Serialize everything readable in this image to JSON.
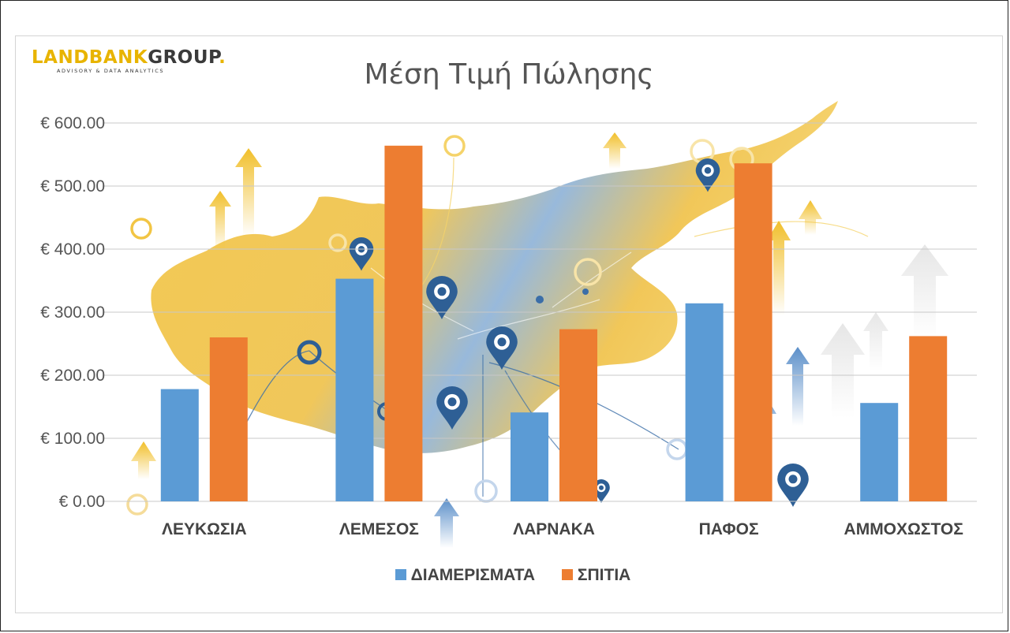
{
  "logo": {
    "brand_part1": "LANDBANK",
    "brand_part2": "GROUP",
    "brand_dot": ".",
    "tagline": "ADVISORY & DATA ANALYTICS"
  },
  "colors": {
    "apartments": "#5b9bd5",
    "houses": "#ed7d31",
    "logo_yellow": "#e8b400",
    "map_yellow": "#f0c24a"
  },
  "chart_data": {
    "type": "bar",
    "title": "Μέση Τιμή Πώλησης",
    "categories": [
      "ΛΕΥΚΩΣΙΑ",
      "ΛΕΜΕΣΟΣ",
      "ΛΑΡΝΑΚΑ",
      "ΠΑΦΟΣ",
      "ΑΜΜΟΧΩΣΤΟΣ"
    ],
    "series": [
      {
        "name": "ΔΙΑΜΕΡΙΣΜΑΤΑ",
        "color": "#5b9bd5",
        "values": [
          178,
          353,
          141,
          314,
          156
        ]
      },
      {
        "name": "ΣΠΙΤΙΑ",
        "color": "#ed7d31",
        "values": [
          260,
          564,
          273,
          536,
          262
        ]
      }
    ],
    "ylim": [
      0,
      600
    ],
    "yticks": [
      "€ 0.00",
      "€ 100.00",
      "€ 200.00",
      "€ 300.00",
      "€ 400.00",
      "€ 500.00",
      "€ 600.00"
    ],
    "ytick_values": [
      0,
      100,
      200,
      300,
      400,
      500,
      600
    ],
    "grid": true,
    "legend_position": "bottom",
    "background": "map-of-cyprus"
  }
}
